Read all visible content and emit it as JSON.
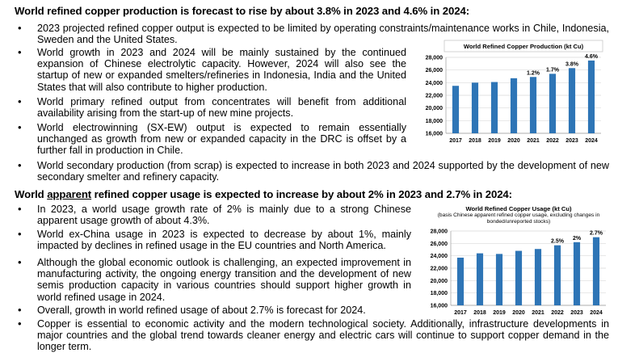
{
  "section1": {
    "heading": "World refined copper production is forecast to rise by about 3.8% in 2023 and 4.6% in 2024:",
    "bullets": [
      "2023 projected refined copper output is expected to be limited by operating constraints/maintenance works in Chile, Indonesia, Sweden and the United States.",
      "World growth in 2023 and 2024 will be mainly sustained by the continued expansion of Chinese electrolytic capacity. However, 2024 will also see the startup of new or expanded smelters/refineries in Indonesia, India and the United States that will also contribute to higher production.",
      "World primary refined output from concentrates will benefit from additional availability arising from the start-up of new mine projects.",
      "World electrowinning (SX-EW) output is expected to remain essentially unchanged as growth from new or expanded capacity in the DRC is offset by a further fall in production in Chile.",
      "World secondary production (from scrap) is expected to increase in both 2023 and 2024 supported by the development of new secondary smelter and refinery capacity."
    ]
  },
  "section2": {
    "heading_pre": "World ",
    "heading_underlined": "apparent",
    "heading_post": " refined copper usage is expected to increase by about 2% in 2023 and 2.7% in 2024:",
    "bullets": [
      "In 2023, a world usage growth rate of 2% is mainly due to a strong Chinese apparent usage growth of about 4.3%.",
      "World ex-China usage in 2023 is expected to decrease by about 1%, mainly impacted by declines in refined usage in the EU countries and North America.",
      "Although the global economic outlook is challenging, an expected improvement in manufacturing activity, the ongoing energy transition and the development of new semis production capacity in various countries should support higher growth in world refined usage in 2024.",
      "Overall, growth in world refined usage of about 2.7% is forecast for 2024.",
      "Copper is essential to economic activity and the modern technological society. Additionally, infrastructure developments in major countries and the global trend towards cleaner energy and electric cars will continue to support copper demand in the longer term."
    ]
  },
  "chart_data": [
    {
      "type": "bar",
      "title": "World Refined Copper Production (kt Cu)",
      "categories": [
        "2017",
        "2018",
        "2019",
        "2020",
        "2021",
        "2022",
        "2023",
        "2024"
      ],
      "values": [
        23500,
        24000,
        24100,
        24700,
        24900,
        25400,
        26300,
        27500
      ],
      "data_labels": [
        "",
        "",
        "",
        "",
        "1.2%",
        "1.7%",
        "3.8%",
        "4.6%"
      ],
      "ylim": [
        16000,
        28000
      ],
      "yticks": [
        "16,000",
        "18,000",
        "20,000",
        "22,000",
        "24,000",
        "26,000",
        "28,000"
      ],
      "color": "#2e75b6"
    },
    {
      "type": "bar",
      "title": "World Refined Copper Usage (kt Cu)",
      "subtitle": "(basis Chinese apparent refined copper usage, excluding changes in bonded/unreported stocks)",
      "categories": [
        "2017",
        "2018",
        "2019",
        "2020",
        "2021",
        "2022",
        "2023",
        "2024"
      ],
      "values": [
        23700,
        24400,
        24300,
        24800,
        25100,
        25700,
        26200,
        27000
      ],
      "data_labels": [
        "",
        "",
        "",
        "",
        "",
        "2.5%",
        "2%",
        "2.7%"
      ],
      "ylim": [
        16000,
        28000
      ],
      "yticks": [
        "16,000",
        "18,000",
        "20,000",
        "22,000",
        "24,000",
        "26,000",
        "28,000"
      ],
      "color": "#2e75b6"
    }
  ]
}
